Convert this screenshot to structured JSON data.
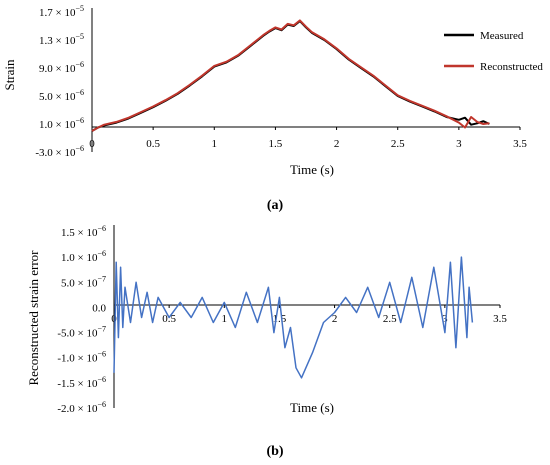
{
  "chart_data": [
    {
      "type": "line",
      "panel_label": "(a)",
      "xlabel": "Time (s)",
      "ylabel": "Strain",
      "xlim": [
        0,
        3.5
      ],
      "ylim": [
        -3e-06,
        1.7e-05
      ],
      "x_ticks": [
        "0",
        "0.5",
        "1",
        "1.5",
        "2",
        "2.5",
        "3",
        "3.5"
      ],
      "y_ticks": [
        {
          "value": 1.7e-05,
          "mantissa": "1.7",
          "exp": "−5"
        },
        {
          "value": 1.3e-05,
          "mantissa": "1.3",
          "exp": "−5"
        },
        {
          "value": 9e-06,
          "mantissa": "9.0",
          "exp": "−6"
        },
        {
          "value": 5e-06,
          "mantissa": "5.0",
          "exp": "−6"
        },
        {
          "value": 1e-06,
          "mantissa": "1.0",
          "exp": "−6"
        },
        {
          "value": -3e-06,
          "mantissa": "-3.0",
          "exp": "−6"
        }
      ],
      "legend_position": "top-right",
      "series": [
        {
          "name": "Measured",
          "color": "#000000",
          "x": [
            0,
            0.05,
            0.1,
            0.2,
            0.3,
            0.4,
            0.5,
            0.6,
            0.7,
            0.8,
            0.9,
            1.0,
            1.1,
            1.2,
            1.3,
            1.4,
            1.45,
            1.5,
            1.55,
            1.6,
            1.65,
            1.7,
            1.75,
            1.8,
            1.9,
            2.0,
            2.1,
            2.2,
            2.3,
            2.4,
            2.5,
            2.6,
            2.7,
            2.8,
            2.9,
            3.0,
            3.05,
            3.1,
            3.15,
            3.2,
            3.25
          ],
          "y": [
            0.0,
            5e-07,
            8e-07,
            1.2e-06,
            1.8e-06,
            2.6e-06,
            3.4e-06,
            4.3e-06,
            5.3e-06,
            6.5e-06,
            7.8e-06,
            9.2e-06,
            9.8e-06,
            1.08e-05,
            1.22e-05,
            1.36e-05,
            1.42e-05,
            1.47e-05,
            1.44e-05,
            1.52e-05,
            1.5e-05,
            1.57e-05,
            1.48e-05,
            1.4e-05,
            1.3e-05,
            1.17e-05,
            1.02e-05,
            9e-06,
            7.8e-06,
            6.4e-06,
            5e-06,
            4.2e-06,
            3.5e-06,
            2.8e-06,
            2e-06,
            1.6e-06,
            1.9e-06,
            9e-07,
            1.1e-06,
            1.4e-06,
            1e-06
          ]
        },
        {
          "name": "Reconstructed",
          "color": "#c0362c",
          "x": [
            0,
            0.05,
            0.1,
            0.2,
            0.3,
            0.4,
            0.5,
            0.6,
            0.7,
            0.8,
            0.9,
            1.0,
            1.1,
            1.2,
            1.3,
            1.4,
            1.45,
            1.5,
            1.55,
            1.6,
            1.65,
            1.7,
            1.75,
            1.8,
            1.9,
            2.0,
            2.1,
            2.2,
            2.3,
            2.4,
            2.5,
            2.6,
            2.7,
            2.8,
            2.9,
            3.0,
            3.05,
            3.1,
            3.15,
            3.2,
            3.25
          ],
          "y": [
            0.0,
            5e-07,
            9e-07,
            1.3e-06,
            1.9e-06,
            2.7e-06,
            3.5e-06,
            4.4e-06,
            5.4e-06,
            6.6e-06,
            7.9e-06,
            9.3e-06,
            9.9e-06,
            1.09e-05,
            1.23e-05,
            1.37e-05,
            1.43e-05,
            1.48e-05,
            1.45e-05,
            1.53e-05,
            1.51e-05,
            1.58e-05,
            1.49e-05,
            1.41e-05,
            1.31e-05,
            1.18e-05,
            1.03e-05,
            9.1e-06,
            7.9e-06,
            6.5e-06,
            5.1e-06,
            4.3e-06,
            3.6e-06,
            2.9e-06,
            2.1e-06,
            1.2e-06,
            5e-07,
            2e-06,
            1.3e-06,
            1e-06,
            1.1e-06
          ]
        }
      ]
    },
    {
      "type": "line",
      "panel_label": "(b)",
      "xlabel": "Time (s)",
      "ylabel": "Reconstructed strain error",
      "xlim": [
        0,
        3.5
      ],
      "ylim": [
        -2e-06,
        1.5e-06
      ],
      "x_ticks": [
        "0",
        "0.5",
        "1",
        "1.5",
        "2",
        "2.5",
        "3",
        "3.5"
      ],
      "y_ticks": [
        {
          "value": 1.5e-06,
          "mantissa": "1.5",
          "exp": "−6"
        },
        {
          "value": 1e-06,
          "mantissa": "1.0",
          "exp": "−6"
        },
        {
          "value": 5e-07,
          "mantissa": "5.0",
          "exp": "−7"
        },
        {
          "value": 0,
          "mantissa": "0.0",
          "exp": ""
        },
        {
          "value": -5e-07,
          "mantissa": "-5.0",
          "exp": "−7"
        },
        {
          "value": -1e-06,
          "mantissa": "-1.0",
          "exp": "−6"
        },
        {
          "value": -1.5e-06,
          "mantissa": "-1.5",
          "exp": "−6"
        },
        {
          "value": -2e-06,
          "mantissa": "-2.0",
          "exp": "−6"
        }
      ],
      "series": [
        {
          "color": "#4472c4",
          "x": [
            0,
            0.02,
            0.04,
            0.06,
            0.08,
            0.1,
            0.15,
            0.2,
            0.25,
            0.3,
            0.35,
            0.4,
            0.5,
            0.6,
            0.7,
            0.8,
            0.9,
            1.0,
            1.1,
            1.2,
            1.3,
            1.4,
            1.45,
            1.5,
            1.55,
            1.6,
            1.65,
            1.7,
            1.8,
            1.9,
            2.0,
            2.1,
            2.2,
            2.3,
            2.4,
            2.5,
            2.6,
            2.7,
            2.8,
            2.9,
            3.0,
            3.05,
            3.1,
            3.15,
            3.2,
            3.22,
            3.25
          ],
          "y": [
            -1.3e-06,
            9e-07,
            -6e-07,
            8e-07,
            -4e-07,
            4e-07,
            -3e-07,
            5e-07,
            -2e-07,
            3e-07,
            -3e-07,
            2e-07,
            -2e-07,
            1e-07,
            -2e-07,
            2e-07,
            -3e-07,
            1e-07,
            -4e-07,
            3e-07,
            -3e-07,
            4e-07,
            -5e-07,
            2e-07,
            -8e-07,
            -4e-07,
            -1.2e-06,
            -1.4e-06,
            -9e-07,
            -3e-07,
            -1e-07,
            2e-07,
            -1e-07,
            4e-07,
            -2e-07,
            5e-07,
            -3e-07,
            6e-07,
            -4e-07,
            8e-07,
            -5e-07,
            9e-07,
            -8e-07,
            1e-06,
            -6e-07,
            4e-07,
            -3e-07
          ]
        }
      ]
    }
  ]
}
